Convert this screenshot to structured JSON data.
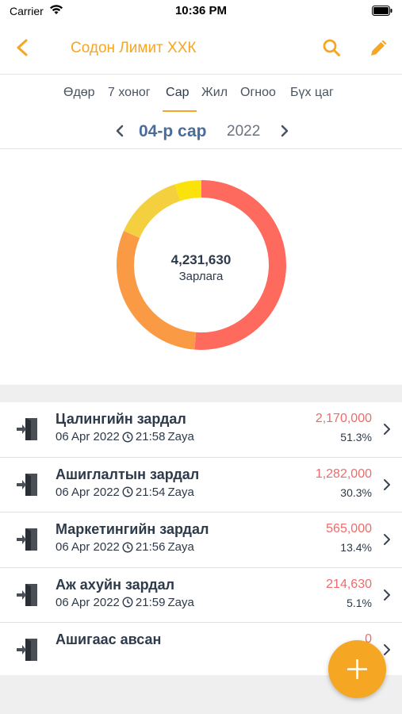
{
  "status_bar": {
    "carrier": "Carrier",
    "time": "10:36 PM"
  },
  "nav": {
    "title": "Содон Лимит ХХК"
  },
  "tabs": [
    "Өдөр",
    "7 хоног",
    "Сар",
    "Жил",
    "Огноо",
    "Бүх цаг"
  ],
  "active_tab": "Сар",
  "period": {
    "month": "04-р сар",
    "year": "2022"
  },
  "summary": {
    "total": "4,231,630",
    "label": "Зарлага"
  },
  "colors": {
    "accent": "#f5a623",
    "expense_red": "#ef6b6b",
    "month_blue": "#4a6c9b"
  },
  "chart_data": {
    "type": "pie",
    "style": "donut",
    "categories": [
      "Цалингийн зардал",
      "Ашиглалтын зардал",
      "Маркетингийн зардал",
      "Аж ахуйн зардал",
      "Ашигаас авсан"
    ],
    "values": [
      2170000,
      1282000,
      565000,
      214630,
      0
    ],
    "colors": [
      "#ff6a5e",
      "#fb9a45",
      "#f4d03f",
      "#fbe20a",
      "#fbe20a"
    ]
  },
  "items": [
    {
      "name": "Цалингийн зардал",
      "date": "06 Apr 2022",
      "time": "21:58",
      "user": "Zaya",
      "amount": "2,170,000",
      "percent": "51.3%"
    },
    {
      "name": "Ашиглалтын зардал",
      "date": "06 Apr 2022",
      "time": "21:54",
      "user": "Zaya",
      "amount": "1,282,000",
      "percent": "30.3%"
    },
    {
      "name": "Маркетингийн зардал",
      "date": "06 Apr 2022",
      "time": "21:56",
      "user": "Zaya",
      "amount": "565,000",
      "percent": "13.4%"
    },
    {
      "name": "Аж ахуйн зардал",
      "date": "06 Apr 2022",
      "time": "21:59",
      "user": "Zaya",
      "amount": "214,630",
      "percent": "5.1%"
    },
    {
      "name": "Ашигаас авсан",
      "amount": "0"
    }
  ],
  "icons": {
    "back": "chevron-left-icon",
    "search": "search-icon",
    "edit": "pencil-icon",
    "expense": "door-exit-icon",
    "clock": "clock-icon",
    "fab": "plus-icon"
  }
}
